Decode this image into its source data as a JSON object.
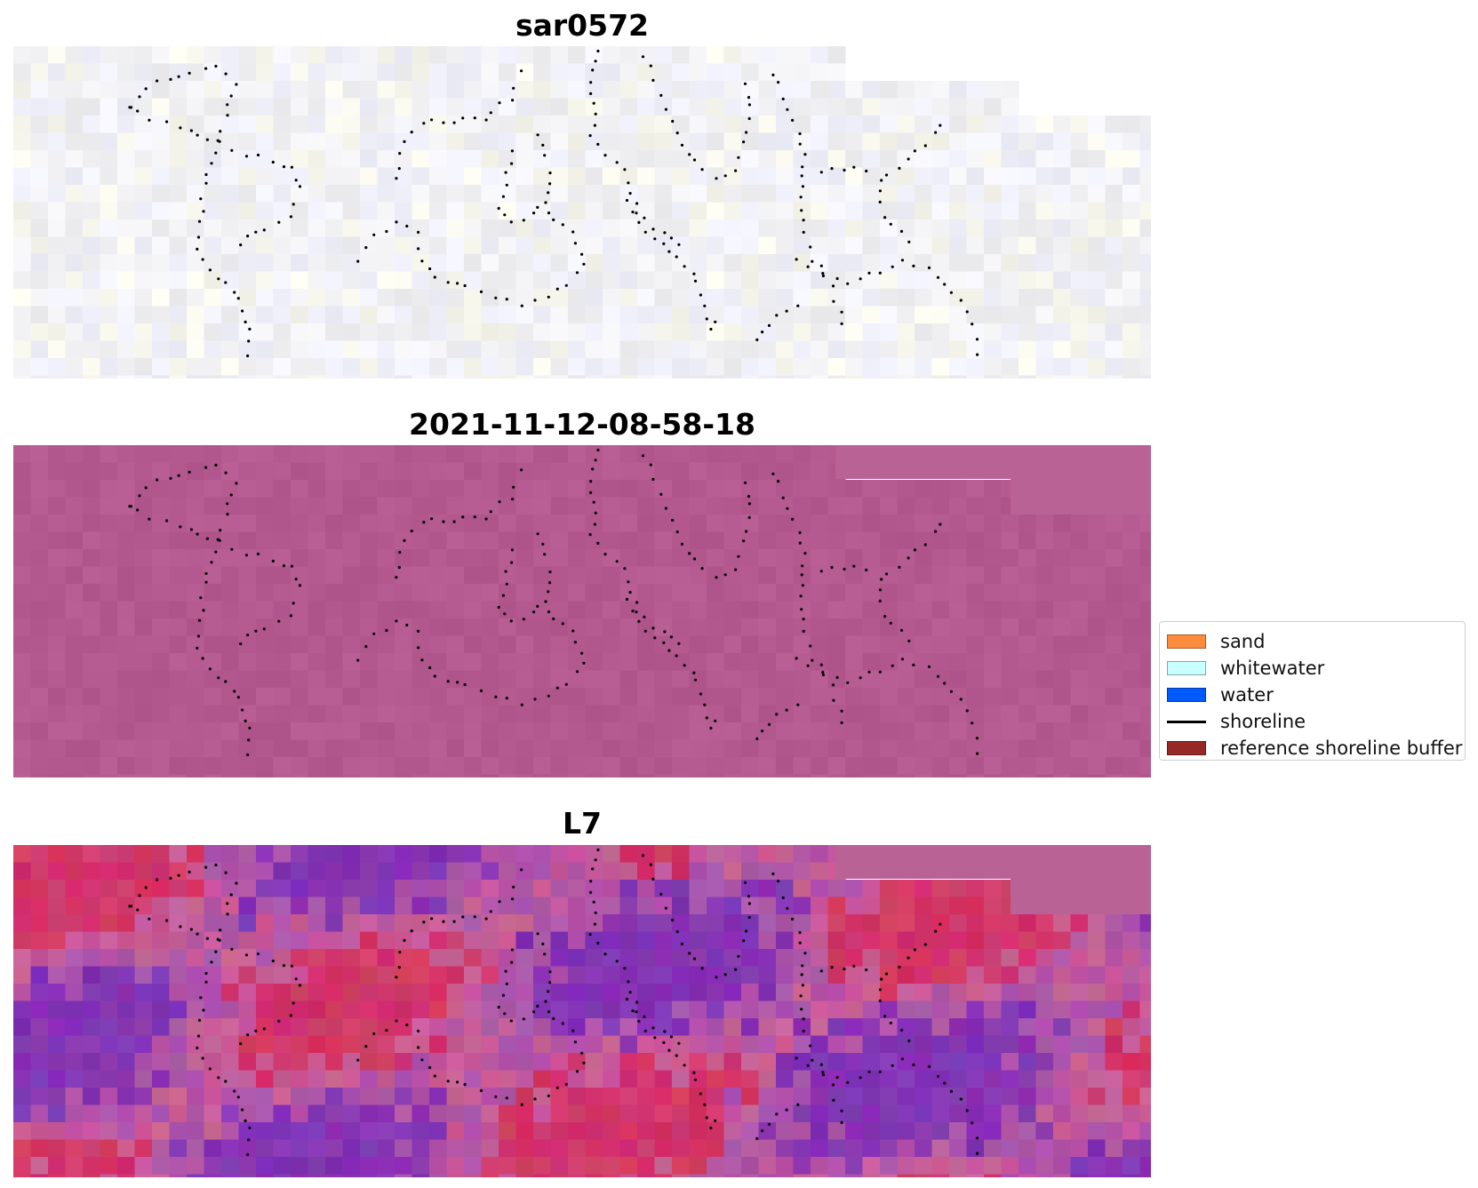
{
  "panels": [
    {
      "title": "sar0572",
      "tone": "white"
    },
    {
      "title": "2021-11-12-08-58-18",
      "tone": "pink"
    },
    {
      "title": "L7",
      "tone": "vivid"
    }
  ],
  "legend": {
    "items": [
      {
        "label": "sand",
        "type": "patch",
        "color": "#ff8c3c"
      },
      {
        "label": "whitewater",
        "type": "patch",
        "color": "#c8ffff"
      },
      {
        "label": "water",
        "type": "patch",
        "color": "#005aff"
      },
      {
        "label": "shoreline",
        "type": "line",
        "color": "#000000"
      },
      {
        "label": "reference shoreline buffer",
        "type": "patch",
        "color": "#962828"
      }
    ]
  }
}
